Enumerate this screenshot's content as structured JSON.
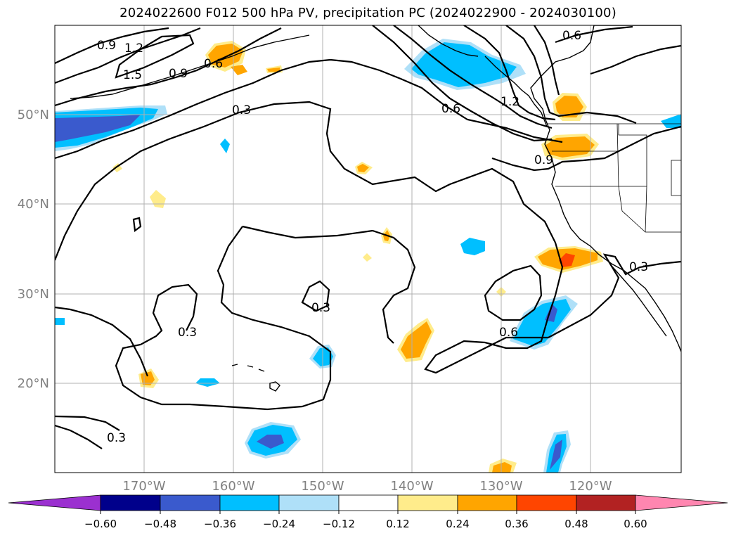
{
  "title": "2024022600 F012 500 hPa PV, precipitation PC (2024022900 - 2024030100)",
  "map": {
    "lat_labels": [
      "50°N",
      "40°N",
      "30°N",
      "20°N"
    ],
    "lon_labels": [
      "170°W",
      "160°W",
      "150°W",
      "140°W",
      "130°W",
      "120°W"
    ],
    "gridlines": true,
    "contour_labels": [
      "0.9",
      "1.2",
      "1.5",
      "0.9",
      "0.6",
      "0.3",
      "0.6",
      "1.2",
      "0.6",
      "0.9",
      "0.3",
      "0.3",
      "0.6",
      "0.3",
      "0.3"
    ]
  },
  "colorbar": {
    "ticks": [
      "−0.60",
      "−0.48",
      "−0.36",
      "−0.24",
      "−0.12",
      "0.12",
      "0.24",
      "0.36",
      "0.48",
      "0.60"
    ],
    "colors": {
      "below_min": "#9b30d0",
      "b1": "#00008b",
      "b2": "#3a5acd",
      "b3": "#00bfff",
      "b4": "#afe0f8",
      "b5": "#ffffff",
      "b6": "#ffec8b",
      "b7": "#ffa500",
      "b8": "#ff4500",
      "b9": "#b22222",
      "above_max": "#ff86b0"
    }
  }
}
